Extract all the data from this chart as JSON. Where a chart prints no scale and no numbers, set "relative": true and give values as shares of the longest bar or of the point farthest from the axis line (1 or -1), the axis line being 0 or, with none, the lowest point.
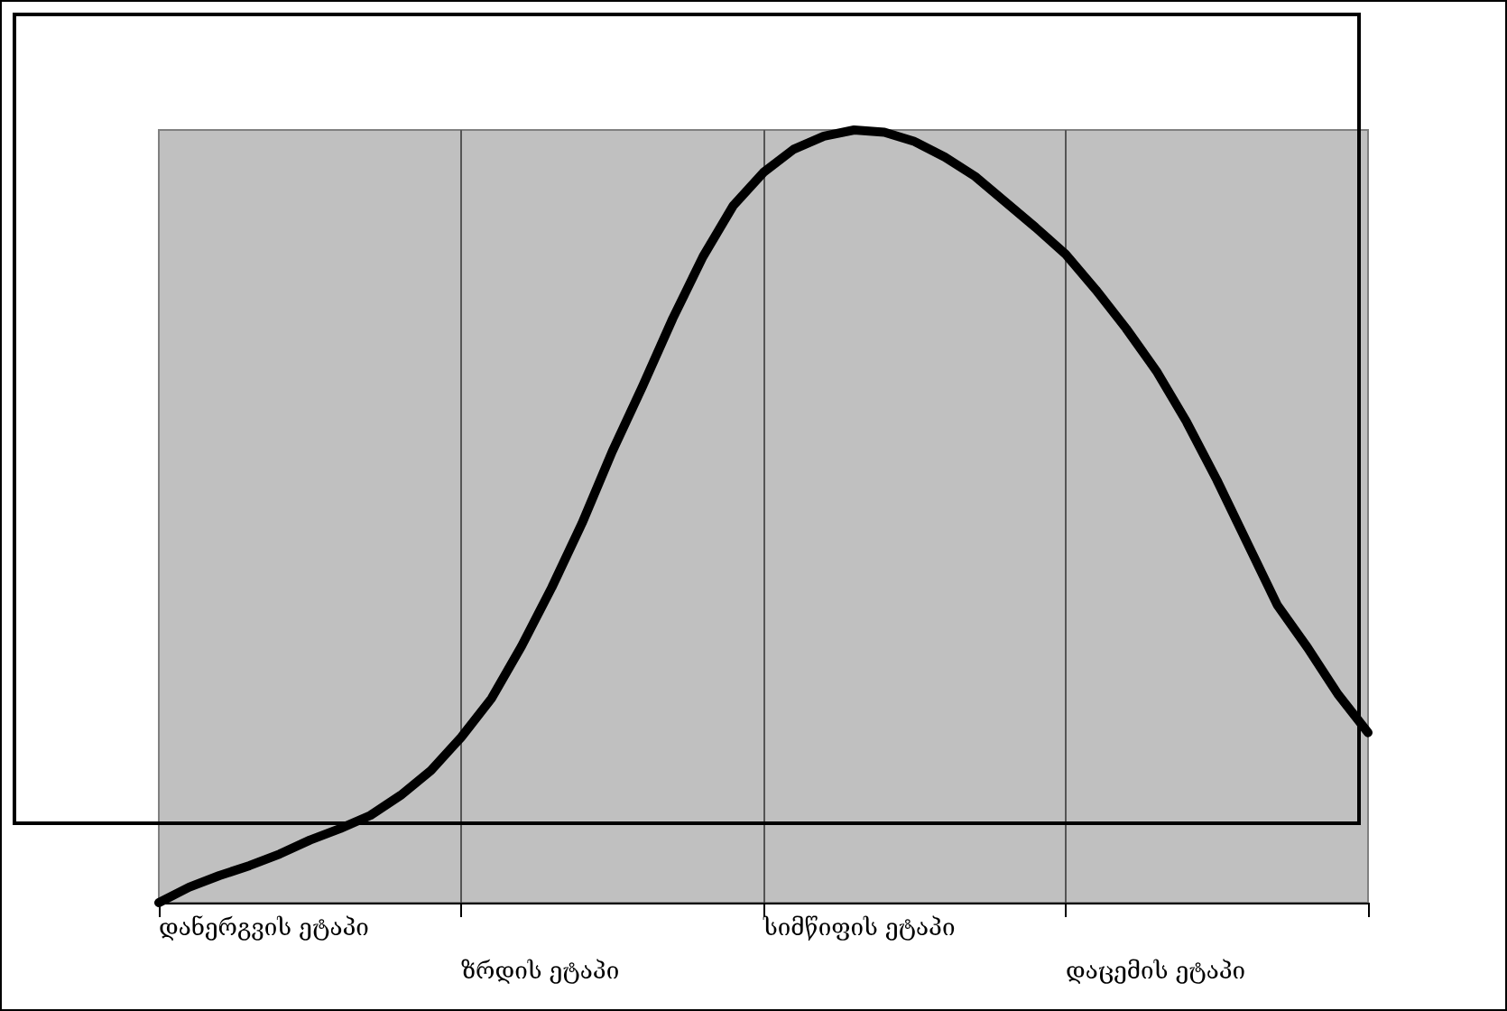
{
  "chart_data": {
    "type": "line",
    "relative": true,
    "categories": [
      null,
      null,
      null,
      null,
      null,
      null,
      null,
      null,
      null,
      null,
      null,
      null,
      null,
      null,
      null,
      null,
      null,
      null,
      null,
      null,
      null,
      null,
      null,
      null,
      null,
      null,
      null,
      null,
      null,
      null,
      null,
      null,
      null,
      null,
      null,
      null,
      null,
      null,
      null,
      null,
      null
    ],
    "series": [
      {
        "color": "#000000",
        "values": [
          0,
          0.02,
          0.035,
          0.048,
          0.063,
          0.081,
          0.096,
          0.113,
          0.139,
          0.171,
          0.214,
          0.264,
          0.332,
          0.408,
          0.491,
          0.584,
          0.668,
          0.756,
          0.836,
          0.902,
          0.945,
          0.975,
          0.992,
          1,
          0.997,
          0.985,
          0.965,
          0.94,
          0.907,
          0.874,
          0.839,
          0.793,
          0.743,
          0.688,
          0.622,
          0.547,
          0.466,
          0.385,
          0.33,
          0.27,
          0.22
        ]
      }
    ],
    "annotations": [
      "დანერგვის ეტაპი",
      "ზრდის ეტაპი",
      "სიმწიფის ეტაპი",
      "დაცემის ეტაპი"
    ],
    "grid": "x",
    "marker": "none",
    "line_style": "solid"
  }
}
